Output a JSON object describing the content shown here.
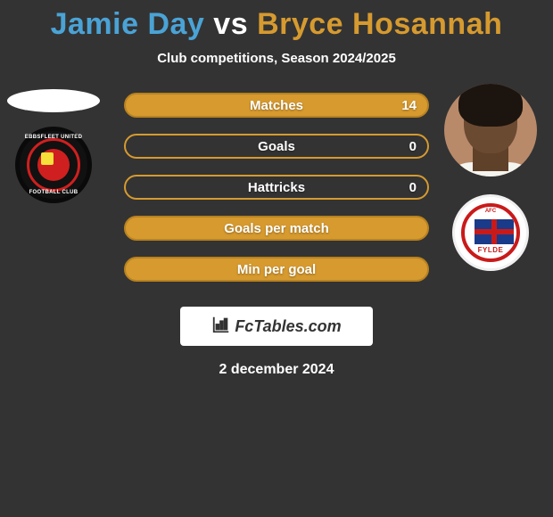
{
  "header": {
    "player1_name": "Jamie Day",
    "vs": "vs",
    "player2_name": "Bryce Hosannah",
    "player1_color": "#4aa3d6",
    "player2_color": "#d69a2f",
    "subtitle": "Club competitions, Season 2024/2025"
  },
  "player1": {
    "club_name": "Ebbsfleet United",
    "club_text_top": "EBBSFLEET UNITED",
    "club_text_bottom": "FOOTBALL CLUB"
  },
  "player2": {
    "club_name": "AFC Fylde",
    "club_afc": "AFC",
    "club_fylde": "FYLDE"
  },
  "stats": {
    "bars": [
      {
        "label": "Matches",
        "left": "",
        "right": "14",
        "fill_pct": 100,
        "bg": "#d69a2f",
        "border": "#b88220"
      },
      {
        "label": "Goals",
        "left": "",
        "right": "0",
        "fill_pct": 0,
        "bg": "#333333",
        "border": "#d69a2f"
      },
      {
        "label": "Hattricks",
        "left": "",
        "right": "0",
        "fill_pct": 0,
        "bg": "#333333",
        "border": "#d69a2f"
      },
      {
        "label": "Goals per match",
        "left": "",
        "right": "",
        "fill_pct": 100,
        "bg": "#d69a2f",
        "border": "#b88220"
      },
      {
        "label": "Min per goal",
        "left": "",
        "right": "",
        "fill_pct": 100,
        "bg": "#d69a2f",
        "border": "#b88220"
      }
    ]
  },
  "branding": {
    "text": "FcTables.com"
  },
  "date": "2 december 2024",
  "colors": {
    "page_bg": "#333333",
    "white": "#ffffff"
  }
}
